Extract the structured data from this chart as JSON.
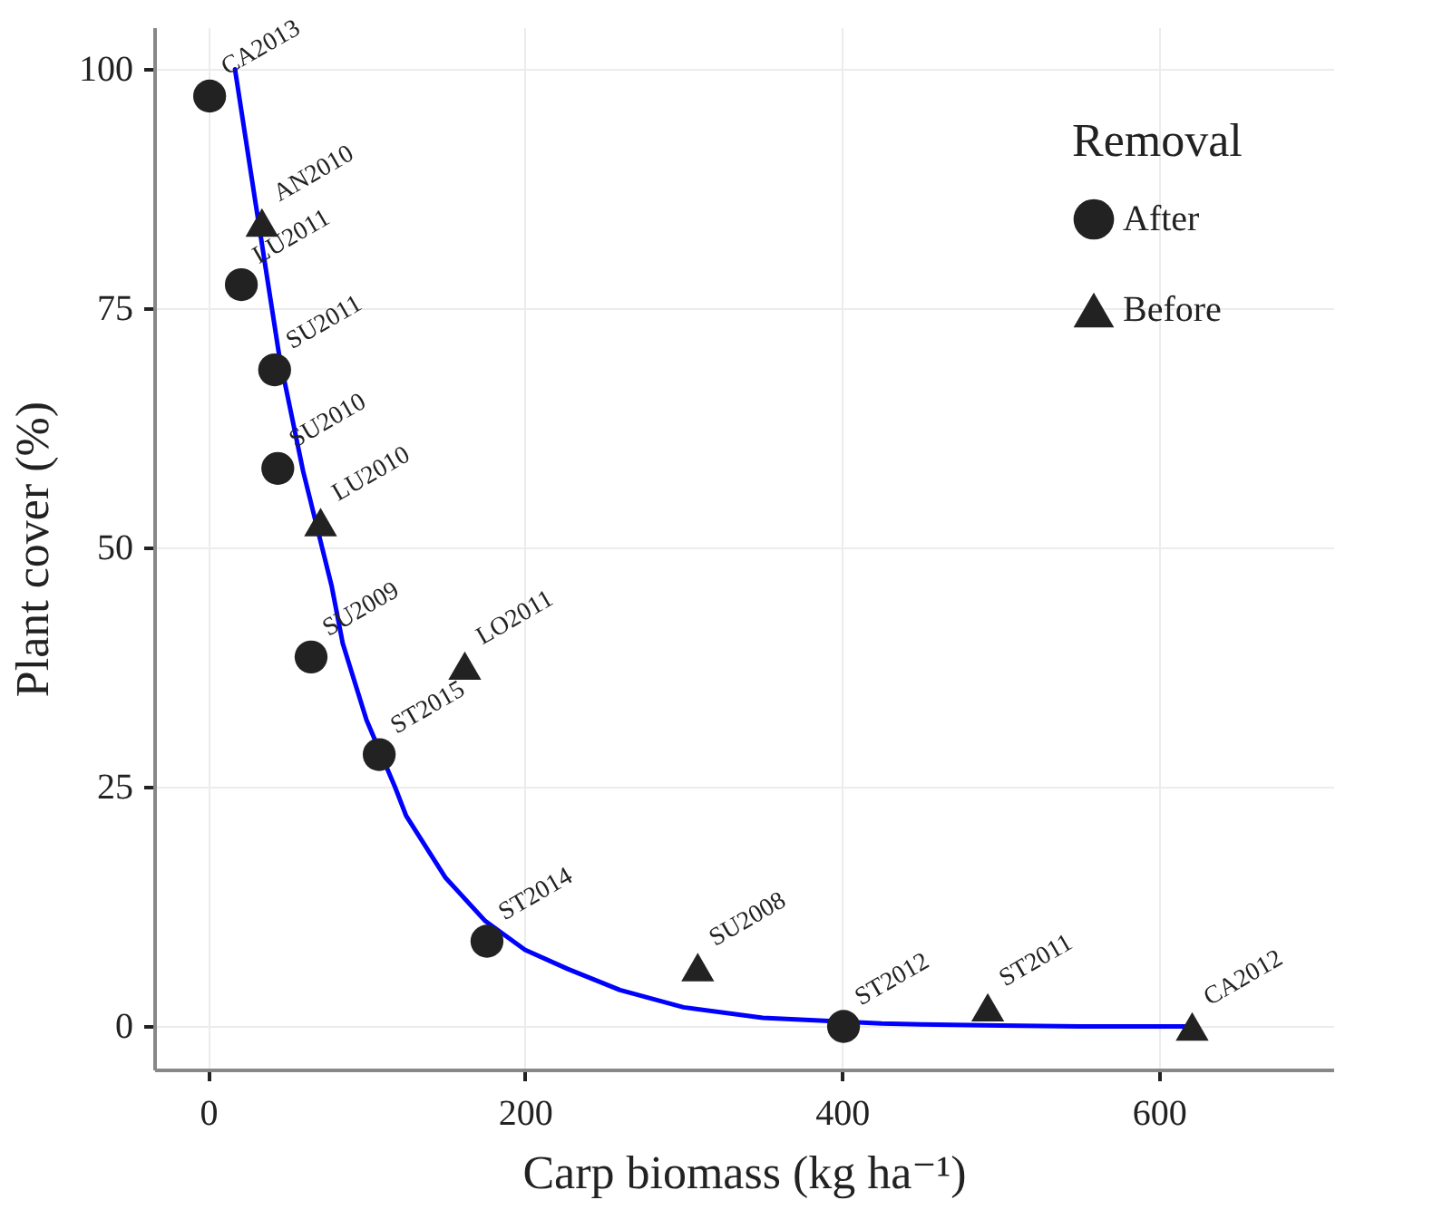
{
  "chart_data": {
    "type": "scatter",
    "xlabel": "Carp biomass (kg ha⁻¹)",
    "ylabel": "Plant cover (%)",
    "legend_title": "Removal",
    "xlim": [
      -34,
      710
    ],
    "xticks": [
      0,
      200,
      400,
      600
    ],
    "ylim": [
      -4.5,
      104.4
    ],
    "yticks": [
      0,
      25,
      50,
      75,
      100
    ],
    "grid": true,
    "legend": "top right",
    "series": [
      {
        "name": "After",
        "marker": "circle",
        "color": "#222222",
        "x": [
          1,
          21,
          42,
          44,
          65,
          108,
          176,
          401
        ],
        "values": [
          97.2,
          77.5,
          68.6,
          58.3,
          38.6,
          28.4,
          8.9,
          0
        ]
      },
      {
        "name": "Before",
        "marker": "triangle",
        "color": "#222222",
        "x": [
          34,
          71,
          162,
          309,
          492,
          621
        ],
        "values": [
          84,
          52.7,
          37.7,
          6.2,
          2,
          0
        ]
      },
      {
        "type": "line",
        "color": "#0000ff",
        "x": [
          17,
          30,
          45,
          60,
          78,
          85,
          100,
          118,
          125,
          150,
          175,
          200,
          227,
          260,
          300,
          350,
          425,
          450,
          500,
          550,
          620
        ],
        "values": [
          100,
          86,
          70,
          58,
          46,
          40,
          32,
          25,
          22,
          15.5,
          11,
          8,
          6,
          3.8,
          2,
          0.9,
          0.3,
          0.2,
          0.1,
          0,
          0
        ]
      }
    ],
    "annotations": [
      {
        "text": "CA2013",
        "x": 1,
        "y": 97.2
      },
      {
        "text": "AN2010",
        "x": 34,
        "y": 84
      },
      {
        "text": "LU2011",
        "x": 21,
        "y": 77.5
      },
      {
        "text": "SU2011",
        "x": 42,
        "y": 68.6
      },
      {
        "text": "SU2010",
        "x": 44,
        "y": 58.3
      },
      {
        "text": "LU2010",
        "x": 71,
        "y": 52.7
      },
      {
        "text": "SU2009",
        "x": 65,
        "y": 38.6
      },
      {
        "text": "LO2011",
        "x": 162,
        "y": 37.7
      },
      {
        "text": "ST2015",
        "x": 108,
        "y": 28.4
      },
      {
        "text": "ST2014",
        "x": 176,
        "y": 8.9
      },
      {
        "text": "SU2008",
        "x": 309,
        "y": 6.2
      },
      {
        "text": "ST2012",
        "x": 401,
        "y": 0
      },
      {
        "text": "ST2011",
        "x": 492,
        "y": 2
      },
      {
        "text": "CA2012",
        "x": 621,
        "y": 0
      }
    ]
  }
}
